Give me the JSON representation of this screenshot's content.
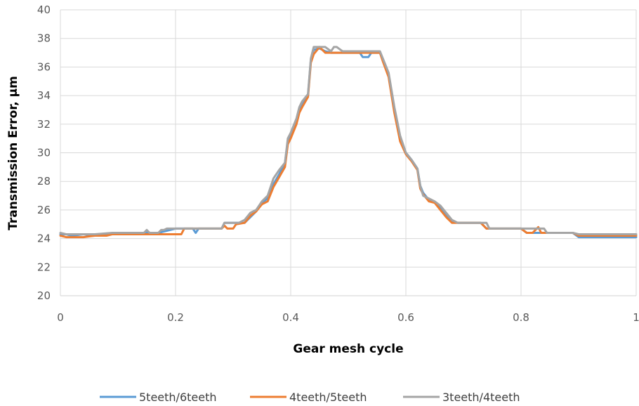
{
  "chart_data": {
    "type": "line",
    "title": "",
    "xlabel": "Gear mesh cycle",
    "ylabel": "Transmission Error, μm",
    "xlim": [
      0,
      1
    ],
    "ylim": [
      20,
      40
    ],
    "xticks": [
      0,
      0.2,
      0.4,
      0.6,
      0.8,
      1
    ],
    "xtick_labels": [
      "0",
      "0.2",
      "0.4",
      "0.6",
      "0.8",
      "1"
    ],
    "yticks": [
      20,
      22,
      24,
      26,
      28,
      30,
      32,
      34,
      36,
      38,
      40
    ],
    "ytick_labels": [
      "20",
      "22",
      "24",
      "26",
      "28",
      "30",
      "32",
      "34",
      "36",
      "38",
      "40"
    ],
    "grid": true,
    "legend_position": "bottom",
    "series": [
      {
        "name": "5teeth/6teeth",
        "color": "#5b9bd5",
        "points": [
          [
            0,
            24.3
          ],
          [
            0.01,
            24.3
          ],
          [
            0.02,
            24.2
          ],
          [
            0.04,
            24.3
          ],
          [
            0.06,
            24.2
          ],
          [
            0.08,
            24.3
          ],
          [
            0.1,
            24.3
          ],
          [
            0.15,
            24.4
          ],
          [
            0.16,
            24.4
          ],
          [
            0.17,
            24.4
          ],
          [
            0.2,
            24.7
          ],
          [
            0.23,
            24.7
          ],
          [
            0.235,
            24.4
          ],
          [
            0.24,
            24.7
          ],
          [
            0.28,
            24.7
          ],
          [
            0.285,
            25.1
          ],
          [
            0.3,
            25.1
          ],
          [
            0.32,
            25.1
          ],
          [
            0.33,
            25.5
          ],
          [
            0.34,
            25.9
          ],
          [
            0.35,
            26.5
          ],
          [
            0.36,
            26.8
          ],
          [
            0.37,
            27.8
          ],
          [
            0.38,
            28.5
          ],
          [
            0.39,
            29.3
          ],
          [
            0.395,
            30.8
          ],
          [
            0.4,
            31.2
          ],
          [
            0.41,
            32.2
          ],
          [
            0.415,
            33.0
          ],
          [
            0.42,
            33.5
          ],
          [
            0.43,
            34.0
          ],
          [
            0.435,
            36.5
          ],
          [
            0.44,
            37.2
          ],
          [
            0.45,
            37.3
          ],
          [
            0.46,
            37.1
          ],
          [
            0.47,
            37.0
          ],
          [
            0.49,
            37.0
          ],
          [
            0.52,
            37.0
          ],
          [
            0.525,
            36.7
          ],
          [
            0.535,
            36.7
          ],
          [
            0.54,
            37.0
          ],
          [
            0.555,
            37.0
          ],
          [
            0.56,
            36.5
          ],
          [
            0.57,
            35.5
          ],
          [
            0.58,
            33.0
          ],
          [
            0.59,
            31.0
          ],
          [
            0.6,
            30.0
          ],
          [
            0.61,
            29.5
          ],
          [
            0.62,
            28.9
          ],
          [
            0.625,
            27.7
          ],
          [
            0.63,
            27.2
          ],
          [
            0.64,
            26.7
          ],
          [
            0.65,
            26.5
          ],
          [
            0.66,
            26.2
          ],
          [
            0.67,
            25.6
          ],
          [
            0.68,
            25.2
          ],
          [
            0.69,
            25.1
          ],
          [
            0.7,
            25.1
          ],
          [
            0.72,
            25.1
          ],
          [
            0.73,
            25.1
          ],
          [
            0.74,
            24.7
          ],
          [
            0.78,
            24.7
          ],
          [
            0.8,
            24.7
          ],
          [
            0.81,
            24.4
          ],
          [
            0.82,
            24.4
          ],
          [
            0.83,
            24.4
          ],
          [
            0.84,
            24.4
          ],
          [
            0.88,
            24.4
          ],
          [
            0.89,
            24.4
          ],
          [
            0.9,
            24.1
          ],
          [
            0.95,
            24.1
          ],
          [
            1,
            24.1
          ]
        ]
      },
      {
        "name": "4teeth/5teeth",
        "color": "#ed7d31",
        "points": [
          [
            0,
            24.2
          ],
          [
            0.01,
            24.1
          ],
          [
            0.02,
            24.1
          ],
          [
            0.04,
            24.1
          ],
          [
            0.06,
            24.2
          ],
          [
            0.08,
            24.2
          ],
          [
            0.09,
            24.3
          ],
          [
            0.1,
            24.3
          ],
          [
            0.15,
            24.3
          ],
          [
            0.2,
            24.3
          ],
          [
            0.21,
            24.3
          ],
          [
            0.215,
            24.7
          ],
          [
            0.24,
            24.7
          ],
          [
            0.28,
            24.7
          ],
          [
            0.285,
            24.9
          ],
          [
            0.29,
            24.7
          ],
          [
            0.3,
            24.7
          ],
          [
            0.305,
            25.0
          ],
          [
            0.32,
            25.1
          ],
          [
            0.33,
            25.6
          ],
          [
            0.34,
            25.9
          ],
          [
            0.35,
            26.4
          ],
          [
            0.36,
            26.6
          ],
          [
            0.37,
            27.6
          ],
          [
            0.38,
            28.3
          ],
          [
            0.39,
            29.0
          ],
          [
            0.395,
            30.6
          ],
          [
            0.4,
            31.0
          ],
          [
            0.41,
            32.0
          ],
          [
            0.415,
            32.8
          ],
          [
            0.42,
            33.2
          ],
          [
            0.43,
            33.9
          ],
          [
            0.435,
            36.3
          ],
          [
            0.44,
            36.9
          ],
          [
            0.45,
            37.4
          ],
          [
            0.46,
            37.0
          ],
          [
            0.47,
            37.0
          ],
          [
            0.5,
            37.0
          ],
          [
            0.53,
            37.0
          ],
          [
            0.555,
            37.0
          ],
          [
            0.56,
            36.4
          ],
          [
            0.57,
            35.3
          ],
          [
            0.58,
            32.8
          ],
          [
            0.59,
            30.8
          ],
          [
            0.6,
            29.9
          ],
          [
            0.61,
            29.4
          ],
          [
            0.62,
            28.8
          ],
          [
            0.625,
            27.5
          ],
          [
            0.63,
            27.1
          ],
          [
            0.64,
            26.6
          ],
          [
            0.65,
            26.5
          ],
          [
            0.66,
            26.0
          ],
          [
            0.67,
            25.5
          ],
          [
            0.68,
            25.1
          ],
          [
            0.7,
            25.1
          ],
          [
            0.73,
            25.1
          ],
          [
            0.74,
            24.7
          ],
          [
            0.8,
            24.7
          ],
          [
            0.81,
            24.4
          ],
          [
            0.82,
            24.4
          ],
          [
            0.83,
            24.8
          ],
          [
            0.835,
            24.4
          ],
          [
            0.89,
            24.4
          ],
          [
            0.9,
            24.2
          ],
          [
            0.95,
            24.2
          ],
          [
            1,
            24.2
          ]
        ]
      },
      {
        "name": "3teeth/4teeth",
        "color": "#a5a5a5",
        "points": [
          [
            0,
            24.4
          ],
          [
            0.01,
            24.3
          ],
          [
            0.02,
            24.3
          ],
          [
            0.03,
            24.3
          ],
          [
            0.04,
            24.3
          ],
          [
            0.06,
            24.3
          ],
          [
            0.09,
            24.4
          ],
          [
            0.1,
            24.4
          ],
          [
            0.145,
            24.4
          ],
          [
            0.15,
            24.6
          ],
          [
            0.155,
            24.4
          ],
          [
            0.17,
            24.4
          ],
          [
            0.175,
            24.6
          ],
          [
            0.18,
            24.6
          ],
          [
            0.185,
            24.7
          ],
          [
            0.2,
            24.7
          ],
          [
            0.24,
            24.7
          ],
          [
            0.28,
            24.7
          ],
          [
            0.285,
            25.1
          ],
          [
            0.3,
            25.1
          ],
          [
            0.31,
            25.1
          ],
          [
            0.32,
            25.3
          ],
          [
            0.33,
            25.8
          ],
          [
            0.34,
            26.0
          ],
          [
            0.35,
            26.6
          ],
          [
            0.36,
            27.0
          ],
          [
            0.37,
            28.2
          ],
          [
            0.38,
            28.8
          ],
          [
            0.39,
            29.3
          ],
          [
            0.395,
            31.0
          ],
          [
            0.4,
            31.4
          ],
          [
            0.41,
            32.4
          ],
          [
            0.415,
            33.2
          ],
          [
            0.42,
            33.6
          ],
          [
            0.43,
            34.1
          ],
          [
            0.435,
            36.6
          ],
          [
            0.44,
            37.4
          ],
          [
            0.45,
            37.4
          ],
          [
            0.46,
            37.4
          ],
          [
            0.47,
            37.1
          ],
          [
            0.475,
            37.4
          ],
          [
            0.48,
            37.4
          ],
          [
            0.49,
            37.1
          ],
          [
            0.5,
            37.1
          ],
          [
            0.53,
            37.1
          ],
          [
            0.555,
            37.1
          ],
          [
            0.56,
            36.6
          ],
          [
            0.57,
            35.6
          ],
          [
            0.58,
            33.2
          ],
          [
            0.59,
            31.2
          ],
          [
            0.6,
            30.0
          ],
          [
            0.61,
            29.5
          ],
          [
            0.62,
            28.9
          ],
          [
            0.625,
            27.7
          ],
          [
            0.63,
            27.0
          ],
          [
            0.64,
            26.8
          ],
          [
            0.65,
            26.6
          ],
          [
            0.66,
            26.3
          ],
          [
            0.67,
            25.8
          ],
          [
            0.68,
            25.3
          ],
          [
            0.69,
            25.1
          ],
          [
            0.7,
            25.1
          ],
          [
            0.74,
            25.1
          ],
          [
            0.745,
            24.7
          ],
          [
            0.8,
            24.7
          ],
          [
            0.81,
            24.7
          ],
          [
            0.82,
            24.7
          ],
          [
            0.83,
            24.7
          ],
          [
            0.84,
            24.7
          ],
          [
            0.845,
            24.4
          ],
          [
            0.89,
            24.4
          ],
          [
            0.9,
            24.3
          ],
          [
            0.95,
            24.3
          ],
          [
            1,
            24.3
          ]
        ]
      }
    ]
  }
}
